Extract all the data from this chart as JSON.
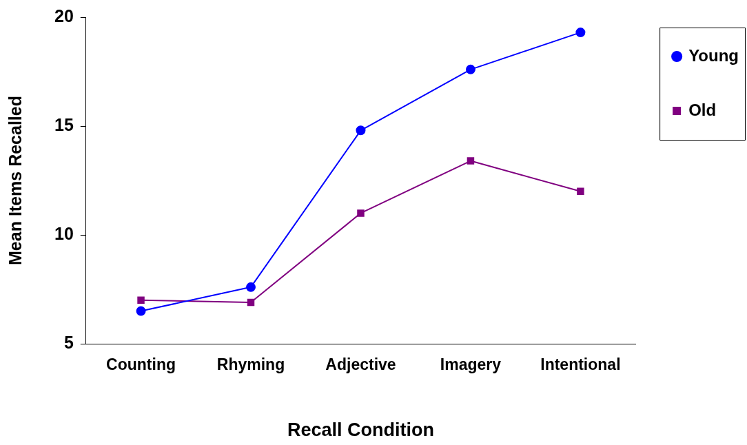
{
  "chart_data": {
    "type": "line",
    "xlabel": "Recall Condition",
    "ylabel": "Mean Items Recalled",
    "categories": [
      "Counting",
      "Rhyming",
      "Adjective",
      "Imagery",
      "Intentional"
    ],
    "series": [
      {
        "name": "Young",
        "color": "#0000ff",
        "marker": "circle",
        "values": [
          6.5,
          7.6,
          14.8,
          17.6,
          19.3
        ]
      },
      {
        "name": "Old",
        "color": "#800080",
        "marker": "square",
        "values": [
          7.0,
          6.9,
          11.0,
          13.4,
          12.0
        ]
      }
    ],
    "ylim": [
      5,
      20
    ],
    "yticks": [
      5,
      10,
      15,
      20
    ],
    "grid": false,
    "legend": "right",
    "line_style": "solid"
  }
}
